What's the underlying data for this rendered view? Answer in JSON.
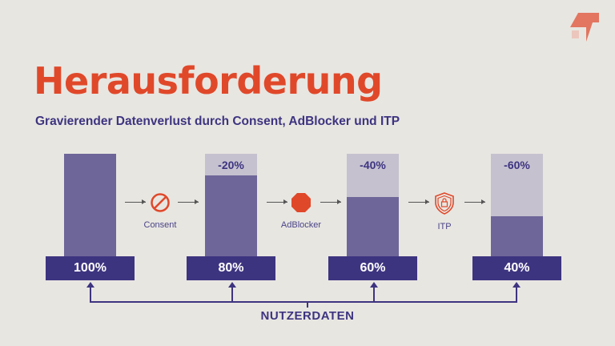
{
  "title": "Herausforderung",
  "subtitle": "Gravierender Datenverlust durch Consent, AdBlocker und ITP",
  "colors": {
    "accent": "#e0482a",
    "primary": "#3d3480",
    "retained": "#6e6699",
    "lost": "#c5c1cf"
  },
  "stages": [
    {
      "retained_percent": 100,
      "label": "100%",
      "loss": ""
    },
    {
      "retained_percent": 80,
      "label": "80%",
      "loss": "-20%"
    },
    {
      "retained_percent": 60,
      "label": "60%",
      "loss": "-40%"
    },
    {
      "retained_percent": 40,
      "label": "40%",
      "loss": "-60%"
    }
  ],
  "steps": [
    {
      "label": "Consent",
      "icon": "prohibited-icon"
    },
    {
      "label": "AdBlocker",
      "icon": "stop-sign-icon"
    },
    {
      "label": "ITP",
      "icon": "shield-lock-icon"
    }
  ],
  "bracket_label": "NUTZERDATEN"
}
